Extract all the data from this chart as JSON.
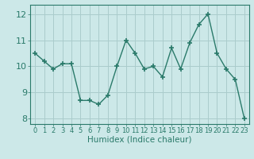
{
  "x": [
    0,
    1,
    2,
    3,
    4,
    5,
    6,
    7,
    8,
    9,
    10,
    11,
    12,
    13,
    14,
    15,
    16,
    17,
    18,
    19,
    20,
    21,
    22,
    23
  ],
  "y": [
    10.5,
    10.2,
    9.9,
    10.1,
    10.1,
    8.7,
    8.7,
    8.55,
    8.9,
    10.0,
    11.0,
    10.5,
    9.9,
    10.0,
    9.6,
    10.7,
    9.9,
    10.9,
    11.6,
    12.0,
    10.5,
    9.9,
    9.5,
    8.0
  ],
  "line_color": "#2a7a6a",
  "marker": "+",
  "marker_size": 5,
  "marker_linewidth": 1.2,
  "bg_color": "#cce8e8",
  "grid_color": "#aacccc",
  "xlabel": "Humidex (Indice chaleur)",
  "ylim": [
    7.8,
    12.35
  ],
  "xlim": [
    -0.5,
    23.5
  ],
  "yticks": [
    8,
    9,
    10,
    11,
    12
  ],
  "xticks": [
    0,
    1,
    2,
    3,
    4,
    5,
    6,
    7,
    8,
    9,
    10,
    11,
    12,
    13,
    14,
    15,
    16,
    17,
    18,
    19,
    20,
    21,
    22,
    23
  ],
  "tick_label_color": "#2a7a6a",
  "xlabel_color": "#2a7a6a",
  "xlabel_fontsize": 7.5,
  "ytick_fontsize": 8,
  "xtick_fontsize": 6,
  "line_width": 1.0
}
